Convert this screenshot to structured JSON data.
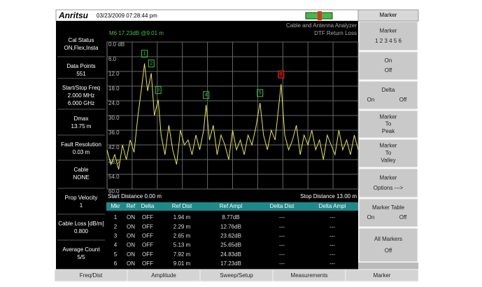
{
  "header": {
    "logo": "Anritsu",
    "datetime": "03/23/2009 07:28:44 pm"
  },
  "sidebar": [
    {
      "label": "Cal Status",
      "values": [
        "ON,Flex,Insta"
      ]
    },
    {
      "label": "Data Points",
      "values": [
        "551"
      ]
    },
    {
      "label": "Start/Stop Freq",
      "values": [
        "2.000 MHz",
        "6.000 GHz"
      ]
    },
    {
      "label": "Dmax",
      "values": [
        "13.75 m"
      ]
    },
    {
      "label": "Fault Resolution",
      "values": [
        "0.03 m"
      ]
    },
    {
      "label": "Cable",
      "values": [
        "NONE"
      ]
    },
    {
      "label": "Prop Velocity",
      "values": [
        "1"
      ]
    },
    {
      "label": "Cable Loss [dB/m]",
      "values": [
        "0.800"
      ]
    },
    {
      "label": "Average Count",
      "values": [
        "5/5"
      ]
    }
  ],
  "softkeys": {
    "title": "Marker",
    "keys": [
      [
        [
          "Marker"
        ],
        [
          "1 2 3 4 5 6"
        ]
      ],
      [
        [
          "On"
        ],
        [
          "Off"
        ]
      ],
      [
        [
          "Delta"
        ],
        [
          "On",
          "Off"
        ]
      ],
      [
        [
          "Marker"
        ],
        [
          "To"
        ],
        [
          "Peak"
        ]
      ],
      [
        [
          "Marker"
        ],
        [
          "To"
        ],
        [
          "Valley"
        ]
      ],
      [
        [
          "Marker"
        ],
        [
          "Options --->"
        ]
      ],
      [
        [
          "Marker Table"
        ],
        [
          "On",
          "Off"
        ]
      ],
      [
        [
          "All Markers"
        ],
        [
          "Off"
        ]
      ]
    ]
  },
  "bottom_tabs": [
    "Freq/Dist",
    "Amplitude",
    "Sweep/Setup",
    "Measurements",
    "Marker"
  ],
  "chart_data": {
    "type": "line",
    "marker_readout": "M6 17.23dB @9.01 m",
    "title": "Cable and Antenna Analyzer",
    "subtitle": "DTF Return Loss",
    "start_label": "Start Distance 0.00 m",
    "stop_label": "Stop Distance 13.00 m",
    "xlim": [
      0,
      13
    ],
    "ylim": [
      0,
      60
    ],
    "y_inverted": true,
    "yticks": [
      {
        "value": 0,
        "label": "0.0 dB"
      },
      {
        "value": 6,
        "label": "6.0"
      },
      {
        "value": 12,
        "label": "12.0"
      },
      {
        "value": 18,
        "label": "18.0"
      },
      {
        "value": 24,
        "label": "24.0"
      },
      {
        "value": 30,
        "label": "30.0"
      },
      {
        "value": 36,
        "label": "36.0"
      },
      {
        "value": 42,
        "label": "42.0"
      },
      {
        "value": 48,
        "label": "48.0"
      },
      {
        "value": 54,
        "label": "54.0"
      },
      {
        "value": 60,
        "label": "60.0"
      }
    ],
    "x_divisions": [
      1.3,
      2.6,
      3.9,
      5.2,
      6.5,
      7.8,
      9.1,
      10.4,
      11.7
    ],
    "series": [
      {
        "name": "Trace",
        "color": "#e8e84a",
        "x": [
          0,
          0.2,
          0.4,
          0.6,
          0.8,
          1.0,
          1.2,
          1.4,
          1.6,
          1.8,
          1.94,
          2.1,
          2.29,
          2.45,
          2.65,
          2.8,
          3.0,
          3.2,
          3.4,
          3.6,
          3.8,
          4.0,
          4.2,
          4.4,
          4.6,
          4.8,
          5.0,
          5.13,
          5.3,
          5.5,
          5.7,
          5.9,
          6.1,
          6.3,
          6.5,
          6.7,
          6.9,
          7.1,
          7.3,
          7.5,
          7.7,
          7.92,
          8.1,
          8.3,
          8.5,
          8.7,
          9.01,
          9.2,
          9.4,
          9.6,
          9.8,
          10.0,
          10.2,
          10.4,
          10.6,
          10.8,
          11.0,
          11.2,
          11.4,
          11.6,
          11.8,
          12.0,
          12.2,
          12.4,
          12.6,
          12.8,
          13.0
        ],
        "values": [
          44,
          50,
          46,
          52,
          42,
          48,
          40,
          45,
          30,
          18,
          8.77,
          20,
          12.76,
          30,
          23.62,
          38,
          46,
          34,
          44,
          50,
          36,
          42,
          40,
          46,
          38,
          44,
          36,
          25.65,
          40,
          34,
          46,
          38,
          42,
          48,
          36,
          44,
          40,
          46,
          38,
          42,
          35,
          24.83,
          38,
          44,
          36,
          40,
          17.23,
          38,
          44,
          40,
          34,
          46,
          38,
          42,
          36,
          44,
          40,
          48,
          38,
          42,
          46,
          36,
          44,
          40,
          46,
          38,
          44
        ]
      }
    ],
    "markers": [
      {
        "label": "1",
        "x": 1.94,
        "value": 8.77,
        "color": "#3fc23f"
      },
      {
        "label": "2",
        "x": 2.29,
        "value": 12.76,
        "color": "#3fc23f"
      },
      {
        "label": "3",
        "x": 2.65,
        "value": 23.62,
        "color": "#3fc23f"
      },
      {
        "label": "4",
        "x": 5.13,
        "value": 25.65,
        "color": "#3fc23f"
      },
      {
        "label": "5",
        "x": 7.92,
        "value": 24.83,
        "color": "#3fc23f"
      },
      {
        "label": "6",
        "x": 9.01,
        "value": 17.23,
        "color": "#e03030"
      }
    ]
  },
  "table": {
    "columns": [
      "Mkr",
      "Ref",
      "Delta",
      "Ref Dist",
      "Ref Ampl",
      "Delta Dist",
      "Delta Ampl"
    ],
    "rows": [
      [
        "1",
        "ON",
        "OFF",
        "1.94 m",
        "8.77dB",
        "---",
        "---"
      ],
      [
        "2",
        "ON",
        "OFF",
        "2.29 m",
        "12.76dB",
        "---",
        "---"
      ],
      [
        "3",
        "ON",
        "OFF",
        "2.65 m",
        "23.62dB",
        "---",
        "---"
      ],
      [
        "4",
        "ON",
        "OFF",
        "5.13 m",
        "25.65dB",
        "---",
        "---"
      ],
      [
        "5",
        "ON",
        "OFF",
        "7.92 m",
        "24.83dB",
        "---",
        "---"
      ],
      [
        "6",
        "ON",
        "OFF",
        "9.01 m",
        "17.23dB",
        "---",
        "---"
      ]
    ]
  }
}
